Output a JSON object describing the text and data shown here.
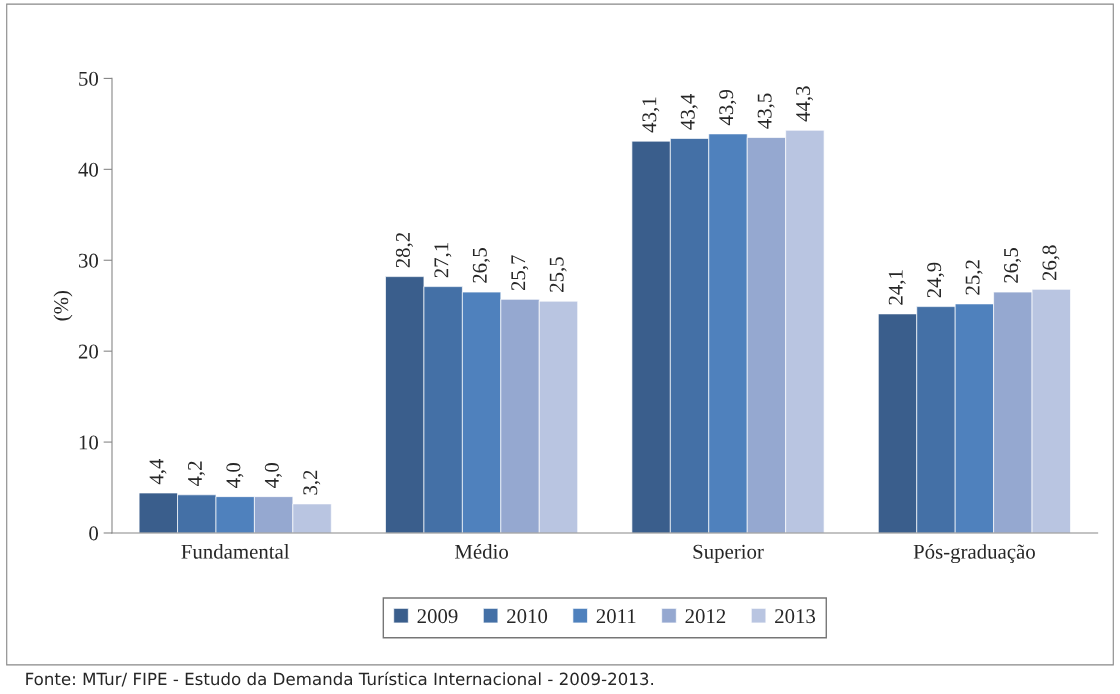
{
  "chart_data": {
    "type": "bar",
    "ylabel": "(%)",
    "categories": [
      "Fundamental",
      "Médio",
      "Superior",
      "Pós-graduação"
    ],
    "series": [
      {
        "name": "2009",
        "color": "#3a5e8c",
        "values": [
          4.4,
          28.2,
          43.1,
          24.1
        ],
        "value_labels": [
          "4,4",
          "28,2",
          "43,1",
          "24,1"
        ]
      },
      {
        "name": "2010",
        "color": "#4470a6",
        "values": [
          4.2,
          27.1,
          43.4,
          24.9
        ],
        "value_labels": [
          "4,2",
          "27,1",
          "43,4",
          "24,9"
        ]
      },
      {
        "name": "2011",
        "color": "#4f81bd",
        "values": [
          4.0,
          26.5,
          43.9,
          25.2
        ],
        "value_labels": [
          "4,0",
          "26,5",
          "43,9",
          "25,2"
        ]
      },
      {
        "name": "2012",
        "color": "#95a8d0",
        "values": [
          4.0,
          25.7,
          43.5,
          26.5
        ],
        "value_labels": [
          "4,0",
          "25,7",
          "43,5",
          "26,5"
        ]
      },
      {
        "name": "2013",
        "color": "#b9c5e1",
        "values": [
          3.2,
          25.5,
          44.3,
          26.8
        ],
        "value_labels": [
          "3,2",
          "25,5",
          "44,3",
          "26,8"
        ]
      }
    ],
    "ylim": [
      0,
      50
    ],
    "yticks": [
      0,
      10,
      20,
      30,
      40,
      50
    ],
    "grid": false,
    "legend": "bottom",
    "annotations": [
      "Fonte: MTur/ FIPE - Estudo da Demanda Turística Internacional - 2009-2013."
    ]
  }
}
